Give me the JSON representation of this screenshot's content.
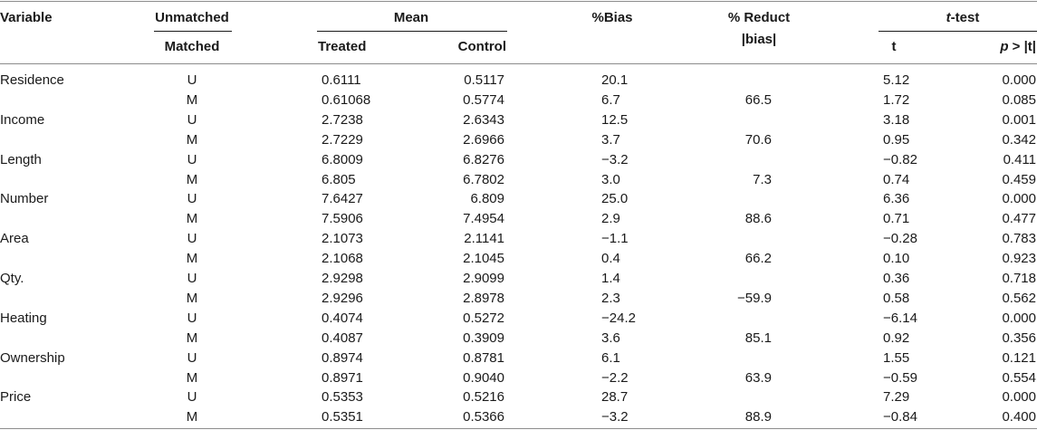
{
  "header": {
    "variable": "Variable",
    "unmatched": "Unmatched",
    "matched": "Matched",
    "mean": "Mean",
    "treated": "Treated",
    "control": "Control",
    "bias": "%Bias",
    "reduct_line1": "% Reduct",
    "reduct_line2": "|bias|",
    "ttest_italic": "t",
    "ttest_rest": "-test",
    "t": "t",
    "p_italic": "p",
    "p_rest": " > |t|"
  },
  "rows": [
    {
      "variable": "Residence",
      "um": "U",
      "treated": "0.6111",
      "control": "0.5117",
      "bias": "20.1",
      "reduct": "",
      "t": "5.12",
      "p": "0.000"
    },
    {
      "variable": "",
      "um": "M",
      "treated": "0.61068",
      "control": "0.5774",
      "bias": "6.7",
      "reduct": "66.5",
      "t": "1.72",
      "p": "0.085"
    },
    {
      "variable": "Income",
      "um": "U",
      "treated": "2.7238",
      "control": "2.6343",
      "bias": "12.5",
      "reduct": "",
      "t": "3.18",
      "p": "0.001"
    },
    {
      "variable": "",
      "um": "M",
      "treated": "2.7229",
      "control": "2.6966",
      "bias": "3.7",
      "reduct": "70.6",
      "t": "0.95",
      "p": "0.342"
    },
    {
      "variable": "Length",
      "um": "U",
      "treated": "6.8009",
      "control": "6.8276",
      "bias": "−3.2",
      "reduct": "",
      "t": "−0.82",
      "p": "0.411"
    },
    {
      "variable": "",
      "um": "M",
      "treated": "6.805",
      "control": "6.7802",
      "bias": "3.0",
      "reduct": "7.3",
      "t": "0.74",
      "p": "0.459"
    },
    {
      "variable": "Number",
      "um": "U",
      "treated": "7.6427",
      "control": "6.809",
      "bias": "25.0",
      "reduct": "",
      "t": "6.36",
      "p": "0.000"
    },
    {
      "variable": "",
      "um": "M",
      "treated": "7.5906",
      "control": "7.4954",
      "bias": "2.9",
      "reduct": "88.6",
      "t": "0.71",
      "p": "0.477"
    },
    {
      "variable": "Area",
      "um": "U",
      "treated": "2.1073",
      "control": "2.1141",
      "bias": "−1.1",
      "reduct": "",
      "t": "−0.28",
      "p": "0.783"
    },
    {
      "variable": "",
      "um": "M",
      "treated": "2.1068",
      "control": "2.1045",
      "bias": "0.4",
      "reduct": "66.2",
      "t": "0.10",
      "p": "0.923"
    },
    {
      "variable": "Qty.",
      "um": "U",
      "treated": "2.9298",
      "control": "2.9099",
      "bias": "1.4",
      "reduct": "",
      "t": "0.36",
      "p": "0.718"
    },
    {
      "variable": "",
      "um": "M",
      "treated": "2.9296",
      "control": "2.8978",
      "bias": "2.3",
      "reduct": "−59.9",
      "t": "0.58",
      "p": "0.562"
    },
    {
      "variable": "Heating",
      "um": "U",
      "treated": "0.4074",
      "control": "0.5272",
      "bias": "−24.2",
      "reduct": "",
      "t": "−6.14",
      "p": "0.000"
    },
    {
      "variable": "",
      "um": "M",
      "treated": "0.4087",
      "control": "0.3909",
      "bias": "3.6",
      "reduct": "85.1",
      "t": "0.92",
      "p": "0.356"
    },
    {
      "variable": "Ownership",
      "um": "U",
      "treated": "0.8974",
      "control": "0.8781",
      "bias": "6.1",
      "reduct": "",
      "t": "1.55",
      "p": "0.121"
    },
    {
      "variable": "",
      "um": "M",
      "treated": "0.8971",
      "control": "0.9040",
      "bias": "−2.2",
      "reduct": "63.9",
      "t": "−0.59",
      "p": "0.554"
    },
    {
      "variable": "Price",
      "um": "U",
      "treated": "0.5353",
      "control": "0.5216",
      "bias": "28.7",
      "reduct": "",
      "t": "7.29",
      "p": "0.000"
    },
    {
      "variable": "",
      "um": "M",
      "treated": "0.5351",
      "control": "0.5366",
      "bias": "−3.2",
      "reduct": "88.9",
      "t": "−0.84",
      "p": "0.400"
    }
  ]
}
